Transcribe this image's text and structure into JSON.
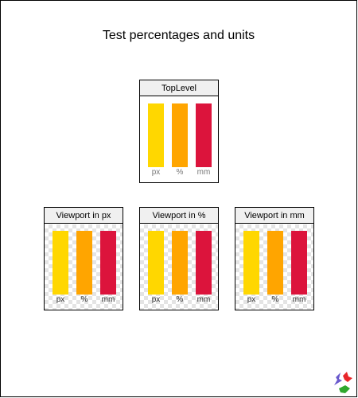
{
  "page": {
    "title": "Test percentages and units"
  },
  "colors": {
    "px": "#FFD700",
    "percent": "#FFA500",
    "mm": "#DC143C"
  },
  "panels": {
    "top": {
      "title": "TopLevel",
      "labels": [
        "px",
        "%",
        "mm"
      ]
    },
    "viewport_px": {
      "title": "Viewport in px",
      "labels": [
        "px",
        "%",
        "mm"
      ]
    },
    "viewport_percent": {
      "title": "Viewport in %",
      "labels": [
        "px",
        "%",
        "mm"
      ]
    },
    "viewport_mm": {
      "title": "Viewport in mm",
      "labels": [
        "px",
        "%",
        "mm"
      ]
    }
  },
  "logo": {
    "icon": "svg-logo-icon"
  }
}
